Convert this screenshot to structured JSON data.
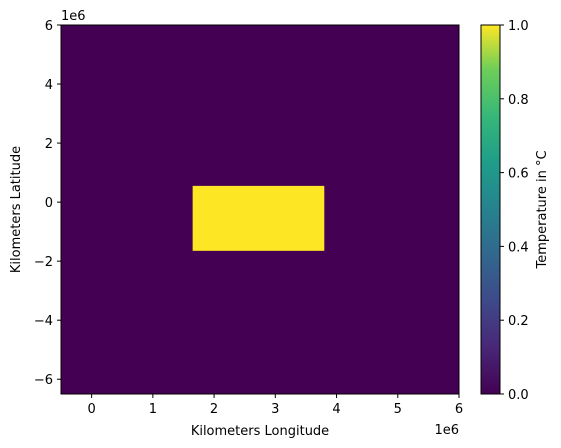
{
  "chart_data": {
    "type": "heatmap",
    "xlabel": "Kilometers Longitude",
    "ylabel": "Kilometers Latitude",
    "x_offset_label": "1e6",
    "y_offset_label": "1e6",
    "xlim": [
      -0.5,
      6.0
    ],
    "ylim": [
      -6.5,
      6.0
    ],
    "x_ticks": [
      0,
      1,
      2,
      3,
      4,
      5,
      6
    ],
    "y_ticks": [
      -6,
      -4,
      -2,
      0,
      2,
      4,
      6
    ],
    "x_tick_labels": [
      "0",
      "1",
      "2",
      "3",
      "4",
      "5",
      "6"
    ],
    "y_tick_labels": [
      "−6",
      "−4",
      "−2",
      "0",
      "2",
      "4",
      "6"
    ],
    "background_value": 0.0,
    "regions": [
      {
        "x_range": [
          1.65,
          3.8
        ],
        "y_range": [
          -1.65,
          0.55
        ],
        "value": 1.0
      }
    ],
    "colorbar": {
      "label": "Temperature in °C",
      "range": [
        0.0,
        1.0
      ],
      "ticks": [
        0.0,
        0.2,
        0.4,
        0.6,
        0.8,
        1.0
      ],
      "tick_labels": [
        "0.0",
        "0.2",
        "0.4",
        "0.6",
        "0.8",
        "1.0"
      ],
      "colormap": "viridis"
    },
    "grid": false
  }
}
